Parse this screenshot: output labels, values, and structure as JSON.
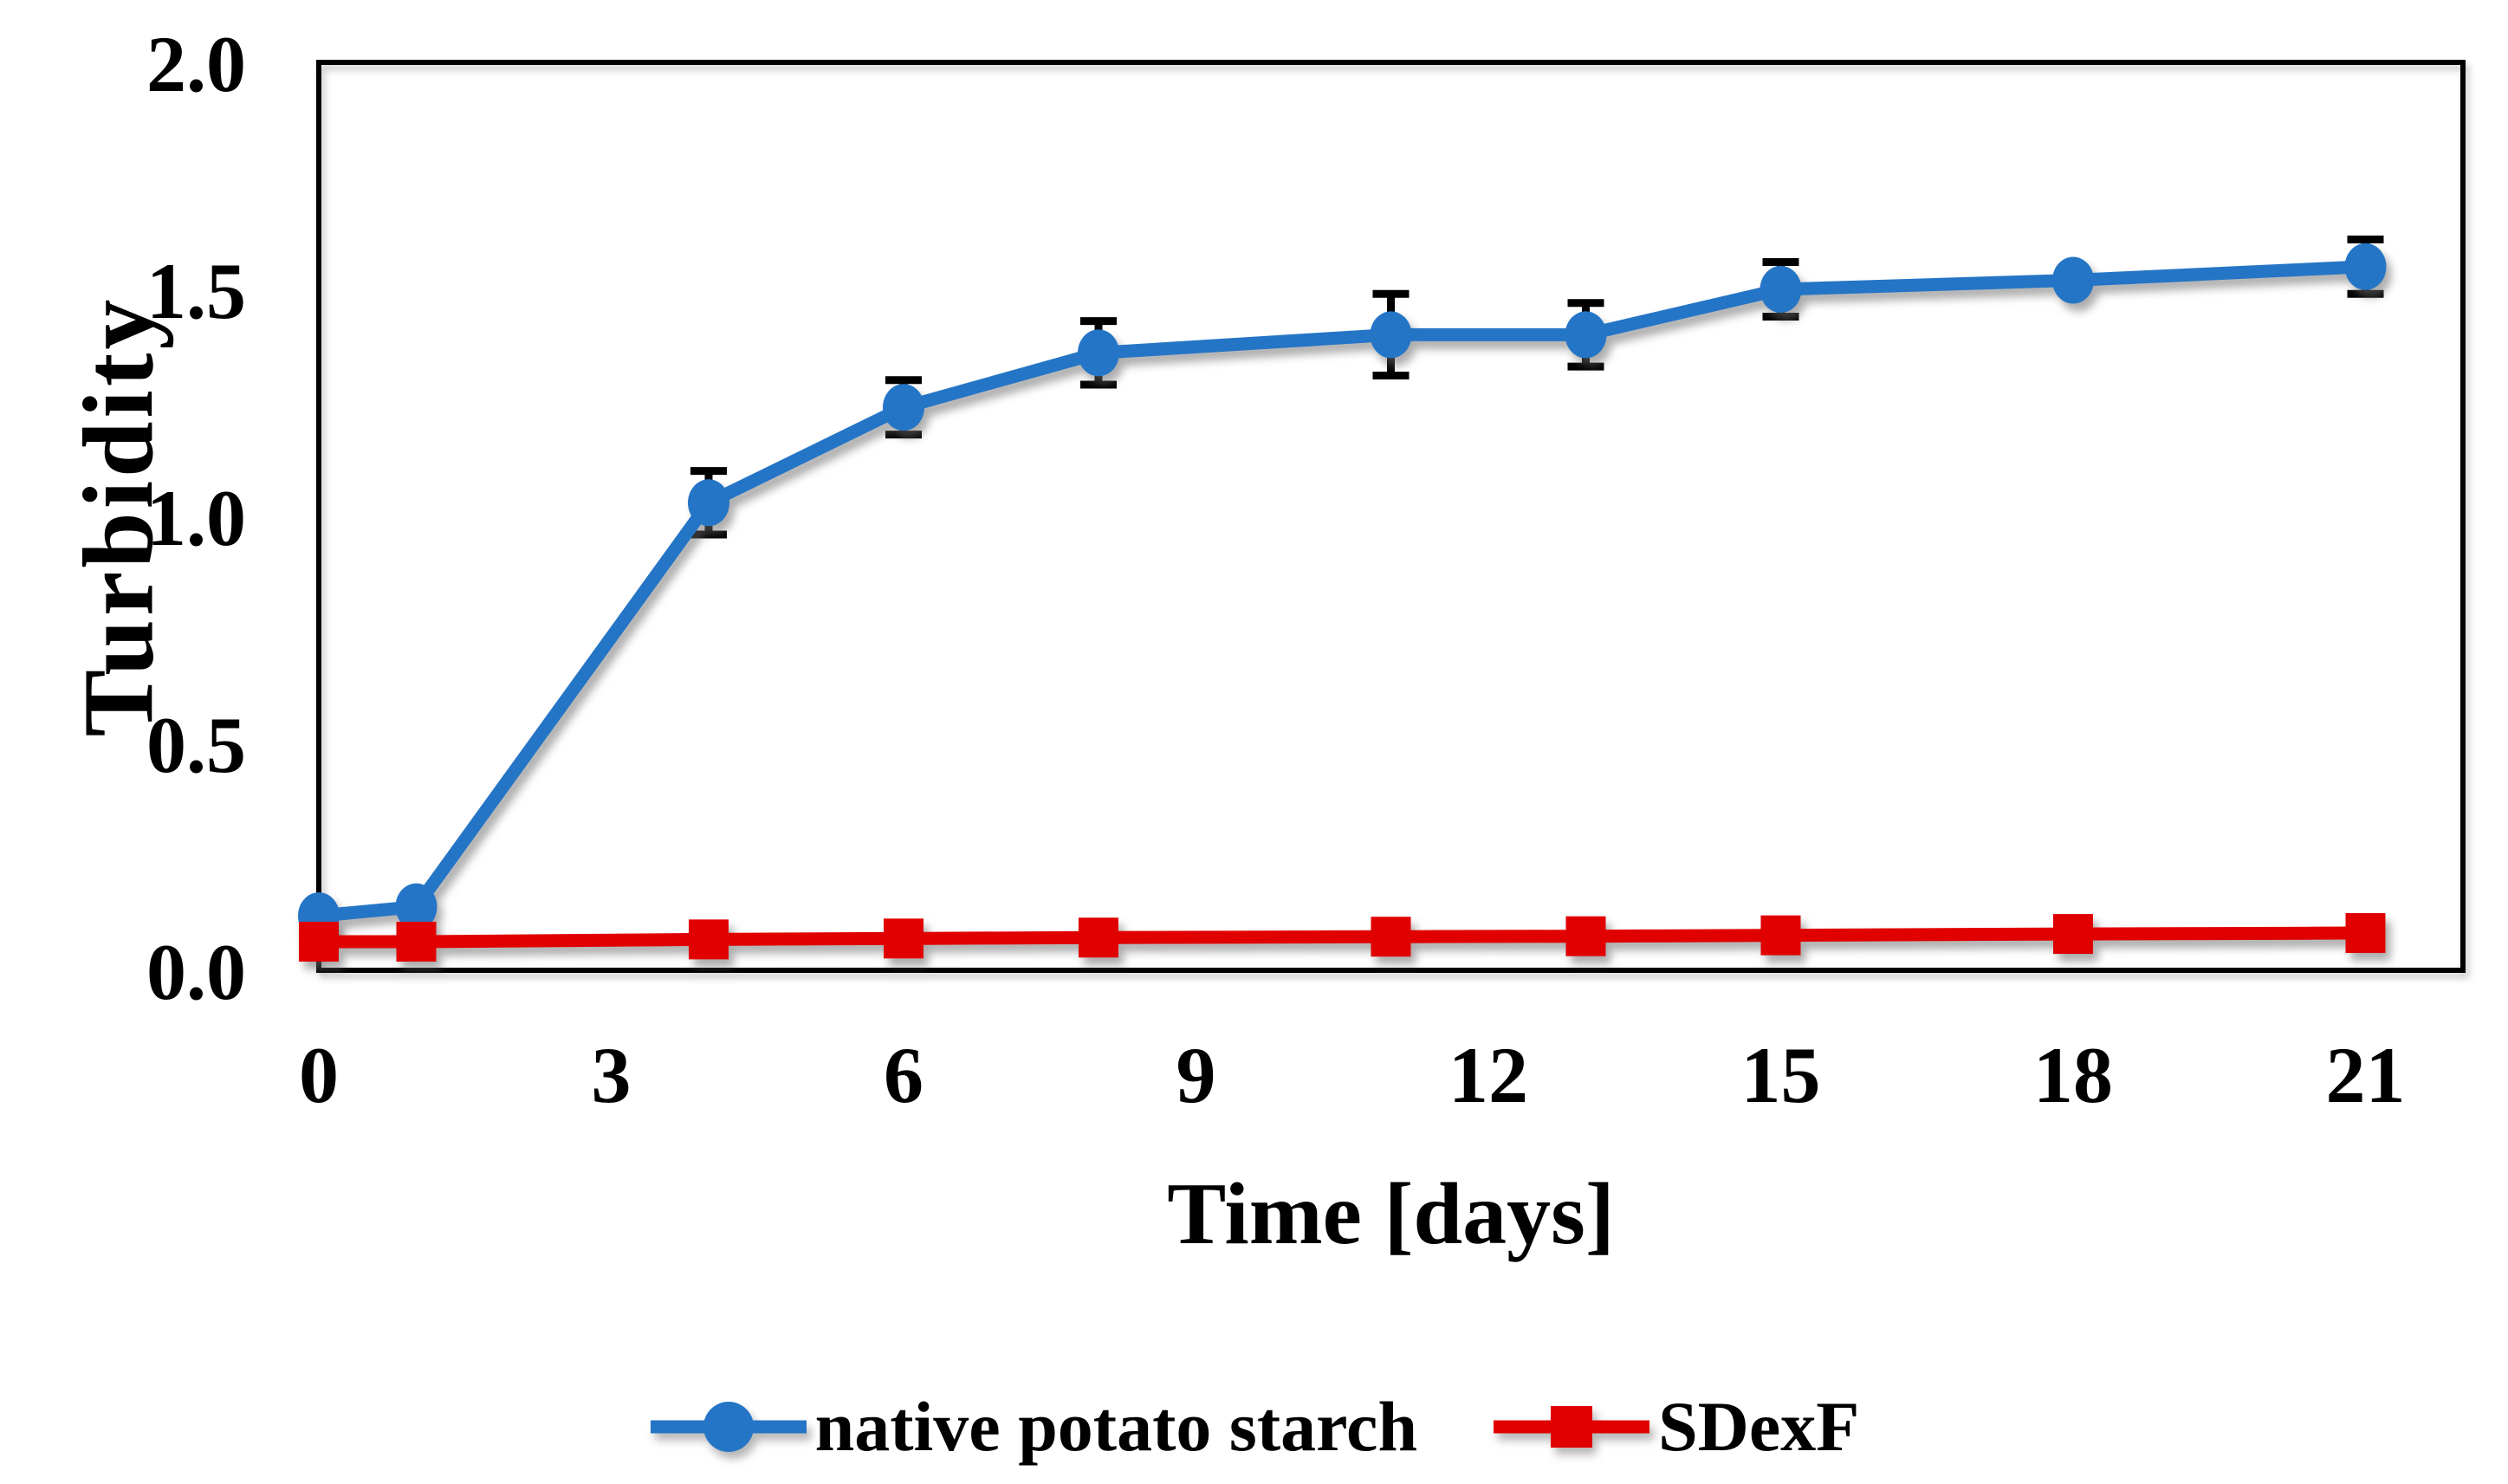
{
  "chart_data": {
    "type": "line",
    "title": "",
    "xlabel": "Time [days]",
    "ylabel": "Turbidity",
    "x": [
      0,
      1,
      4,
      6,
      8,
      11,
      13,
      15,
      18,
      21
    ],
    "series": [
      {
        "name": "native potato starch",
        "color": "#2575C6",
        "marker": "circle",
        "values": [
          0.12,
          0.14,
          1.03,
          1.24,
          1.36,
          1.4,
          1.4,
          1.5,
          1.52,
          1.55
        ],
        "errors": [
          0,
          0,
          0.07,
          0.06,
          0.07,
          0.09,
          0.07,
          0.06,
          0,
          0.06
        ]
      },
      {
        "name": "SDexF",
        "color": "#E00000",
        "marker": "square",
        "values": [
          0.063,
          0.063,
          0.068,
          0.07,
          0.072,
          0.074,
          0.075,
          0.077,
          0.08,
          0.082
        ],
        "errors": [
          0,
          0,
          0,
          0,
          0,
          0,
          0,
          0,
          0,
          0
        ]
      }
    ],
    "error_bar_color": "#000000",
    "frame_color": "#000000",
    "x_ticks": [
      0,
      3,
      6,
      9,
      12,
      15,
      18,
      21
    ],
    "x_tick_labels": [
      "0",
      "3",
      "6",
      "9",
      "12",
      "15",
      "18",
      "21"
    ],
    "y_ticks": [
      0.0,
      0.5,
      1.0,
      1.5,
      2.0
    ],
    "y_tick_labels": [
      "0.0",
      "0.5",
      "1.0",
      "1.5",
      "2.0"
    ],
    "xlim": [
      0,
      22
    ],
    "ylim": [
      0,
      2
    ],
    "grid": false,
    "legend_position": "bottom"
  }
}
